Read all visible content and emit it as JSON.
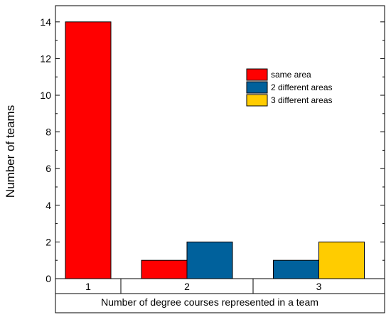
{
  "chart_data": {
    "type": "bar",
    "title": "",
    "xlabel": "Number of degree courses represented in a team",
    "ylabel": "Number of teams",
    "ylim": [
      0,
      15
    ],
    "yticks": [
      0,
      2,
      4,
      6,
      8,
      10,
      12,
      14
    ],
    "ytick_labels": [
      "0",
      "2",
      "4",
      "6",
      "8",
      "10",
      "12",
      "14"
    ],
    "grid": false,
    "legend_position": "top-right",
    "groups": [
      {
        "label": "1",
        "bars": [
          {
            "series": "same area",
            "value": 14
          }
        ]
      },
      {
        "label": "2",
        "bars": [
          {
            "series": "same area",
            "value": 1
          },
          {
            "series": "2 different areas",
            "value": 2
          }
        ]
      },
      {
        "label": "3",
        "bars": [
          {
            "series": "2 different areas",
            "value": 1
          },
          {
            "series": "3 different areas",
            "value": 2
          }
        ]
      }
    ],
    "series": [
      {
        "name": "same area",
        "color": "#ff0000"
      },
      {
        "name": "2 different areas",
        "color": "#00619c"
      },
      {
        "name": "3 different areas",
        "color": "#ffcc00"
      }
    ]
  }
}
